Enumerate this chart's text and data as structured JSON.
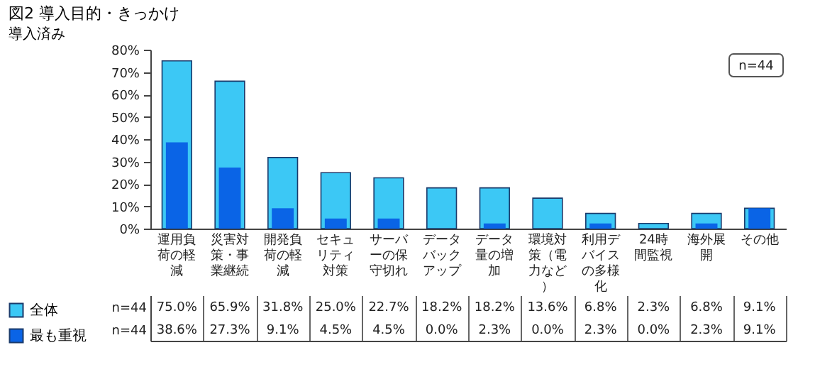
{
  "chart_data": {
    "type": "bar",
    "title": "図2 導入目的・きっかけ",
    "subtitle": "導入済み",
    "categories": [
      "運用負荷の軽減",
      "災害対策・事業継続",
      "開発負荷の軽減",
      "セキュリティ対策",
      "サーバーの保守切れ",
      "データバックアップ",
      "データ量の増加",
      "環境対策（電力など）",
      "利用デバイスの多様化",
      "24時間監視",
      "海外展開",
      "その他"
    ],
    "series": [
      {
        "name": "全体",
        "color": "#3cc8f5",
        "values": [
          75.0,
          65.9,
          31.8,
          25.0,
          22.7,
          18.2,
          18.2,
          13.6,
          6.8,
          2.3,
          6.8,
          9.1
        ],
        "value_labels": [
          "75.0%",
          "65.9%",
          "31.8%",
          "25.0%",
          "22.7%",
          "18.2%",
          "18.2%",
          "13.6%",
          "6.8%",
          "2.3%",
          "6.8%",
          "9.1%"
        ]
      },
      {
        "name": "最も重視",
        "color": "#0a64e6",
        "values": [
          38.6,
          27.3,
          9.1,
          4.5,
          4.5,
          0.0,
          2.3,
          0.0,
          2.3,
          0.0,
          2.3,
          9.1
        ],
        "value_labels": [
          "38.6%",
          "27.3%",
          "9.1%",
          "4.5%",
          "4.5%",
          "0.0%",
          "2.3%",
          "0.0%",
          "2.3%",
          "0.0%",
          "2.3%",
          "9.1%"
        ]
      }
    ],
    "ylim": [
      0,
      80
    ],
    "yticks": [
      {
        "value": 0,
        "label": "0%"
      },
      {
        "value": 10,
        "label": "10%"
      },
      {
        "value": 20,
        "label": "20%"
      },
      {
        "value": 30,
        "label": "30%"
      },
      {
        "value": 40,
        "label": "40%"
      },
      {
        "value": 50,
        "label": "50%"
      },
      {
        "value": 60,
        "label": "60%"
      },
      {
        "value": 70,
        "label": "70%"
      },
      {
        "value": 80,
        "label": "80%"
      }
    ],
    "legend": "left",
    "annotations": [
      "n=44"
    ]
  }
}
